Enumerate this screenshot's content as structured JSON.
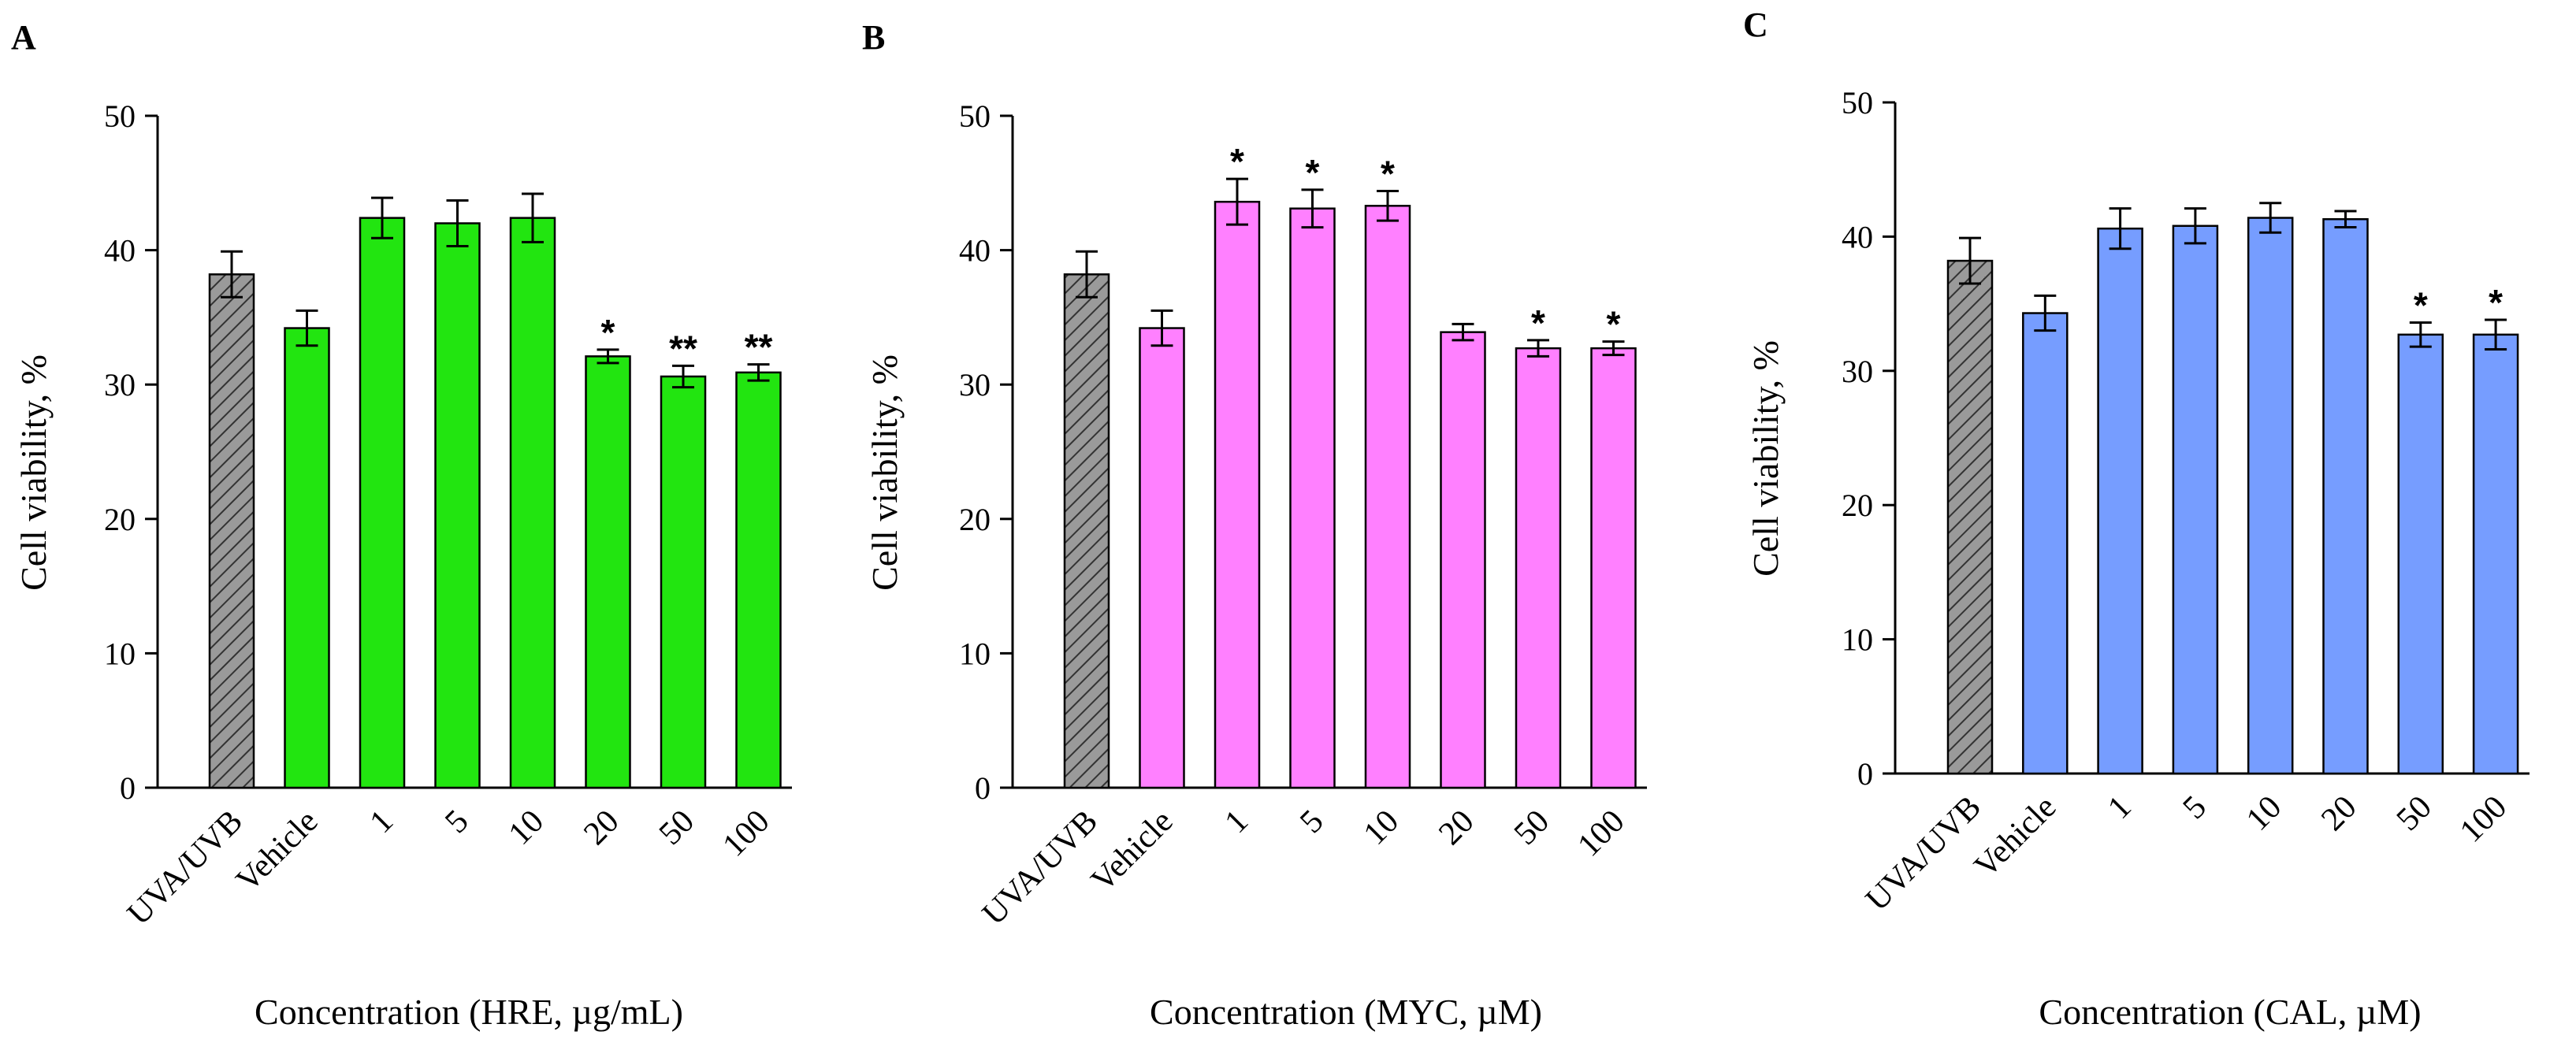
{
  "figure": {
    "panels": [
      {
        "letter": "A",
        "chart_type": "bar",
        "ylabel": "Cell viability, %",
        "xlabel": "Concentration (HRE, µg/mL)",
        "ylim": [
          0,
          50
        ],
        "yticks": [
          "0",
          "10",
          "20",
          "30",
          "40",
          "50"
        ],
        "categories": [
          "UVA/UVB",
          "Vehicle",
          "1",
          "5",
          "10",
          "20",
          "50",
          "100"
        ],
        "values": [
          38.2,
          34.2,
          42.4,
          42.0,
          42.4,
          32.1,
          30.6,
          30.9
        ],
        "errors": [
          1.7,
          1.3,
          1.5,
          1.7,
          1.8,
          0.5,
          0.8,
          0.6
        ],
        "significance": [
          "",
          "",
          "",
          "",
          "",
          "*",
          "**",
          "**"
        ],
        "colors": [
          "#9a9a9a",
          "#22e510",
          "#22e510",
          "#22e510",
          "#22e510",
          "#22e510",
          "#22e510",
          "#22e510"
        ]
      },
      {
        "letter": "B",
        "chart_type": "bar",
        "ylabel": "Cell viability, %",
        "xlabel": "Concentration (MYC, µM)",
        "ylim": [
          0,
          50
        ],
        "yticks": [
          "0",
          "10",
          "20",
          "30",
          "40",
          "50"
        ],
        "categories": [
          "UVA/UVB",
          "Vehicle",
          "1",
          "5",
          "10",
          "20",
          "50",
          "100"
        ],
        "values": [
          38.2,
          34.2,
          43.6,
          43.1,
          43.3,
          33.9,
          32.7,
          32.7
        ],
        "errors": [
          1.7,
          1.3,
          1.7,
          1.4,
          1.1,
          0.6,
          0.6,
          0.5
        ],
        "significance": [
          "",
          "",
          "*",
          "*",
          "*",
          "",
          "*",
          "*"
        ],
        "colors": [
          "#9a9a9a",
          "#ff80ff",
          "#ff80ff",
          "#ff80ff",
          "#ff80ff",
          "#ff80ff",
          "#ff80ff",
          "#ff80ff"
        ]
      },
      {
        "letter": "C",
        "chart_type": "bar",
        "ylabel": "Cell viability, %",
        "xlabel": "Concentration (CAL, µM)",
        "ylim": [
          0,
          50
        ],
        "yticks": [
          "0",
          "10",
          "20",
          "30",
          "40",
          "50"
        ],
        "categories": [
          "UVA/UVB",
          "Vehicle",
          "1",
          "5",
          "10",
          "20",
          "50",
          "100"
        ],
        "values": [
          38.2,
          34.3,
          40.6,
          40.8,
          41.4,
          41.3,
          32.7,
          32.7
        ],
        "errors": [
          1.7,
          1.3,
          1.5,
          1.3,
          1.1,
          0.6,
          0.9,
          1.1
        ],
        "significance": [
          "",
          "",
          "",
          "",
          "",
          "",
          "*",
          "*"
        ],
        "colors": [
          "#9a9a9a",
          "#769dff",
          "#769dff",
          "#769dff",
          "#769dff",
          "#769dff",
          "#769dff",
          "#769dff"
        ]
      }
    ]
  },
  "chart_data": [
    {
      "type": "bar",
      "title": "A",
      "xlabel": "Concentration (HRE, µg/mL)",
      "ylabel": "Cell viability, %",
      "ylim": [
        0,
        50
      ],
      "categories": [
        "UVA/UVB",
        "Vehicle",
        "1",
        "5",
        "10",
        "20",
        "50",
        "100"
      ],
      "values": [
        38.2,
        34.2,
        42.4,
        42.0,
        42.4,
        32.1,
        30.6,
        30.9
      ],
      "errors": [
        1.7,
        1.3,
        1.5,
        1.7,
        1.8,
        0.5,
        0.8,
        0.6
      ],
      "annotations": [
        "",
        "",
        "",
        "",
        "",
        "*",
        "**",
        "**"
      ]
    },
    {
      "type": "bar",
      "title": "B",
      "xlabel": "Concentration (MYC, µM)",
      "ylabel": "Cell viability, %",
      "ylim": [
        0,
        50
      ],
      "categories": [
        "UVA/UVB",
        "Vehicle",
        "1",
        "5",
        "10",
        "20",
        "50",
        "100"
      ],
      "values": [
        38.2,
        34.2,
        43.6,
        43.1,
        43.3,
        33.9,
        32.7,
        32.7
      ],
      "errors": [
        1.7,
        1.3,
        1.7,
        1.4,
        1.1,
        0.6,
        0.6,
        0.5
      ],
      "annotations": [
        "",
        "",
        "*",
        "*",
        "*",
        "",
        "*",
        "*"
      ]
    },
    {
      "type": "bar",
      "title": "C",
      "xlabel": "Concentration (CAL, µM)",
      "ylabel": "Cell viability, %",
      "ylim": [
        0,
        50
      ],
      "categories": [
        "UVA/UVB",
        "Vehicle",
        "1",
        "5",
        "10",
        "20",
        "50",
        "100"
      ],
      "values": [
        38.2,
        34.3,
        40.6,
        40.8,
        41.4,
        41.3,
        32.7,
        32.7
      ],
      "errors": [
        1.7,
        1.3,
        1.5,
        1.3,
        1.1,
        0.6,
        0.9,
        1.1
      ],
      "annotations": [
        "",
        "",
        "",
        "",
        "",
        "",
        "*",
        "*"
      ]
    }
  ]
}
